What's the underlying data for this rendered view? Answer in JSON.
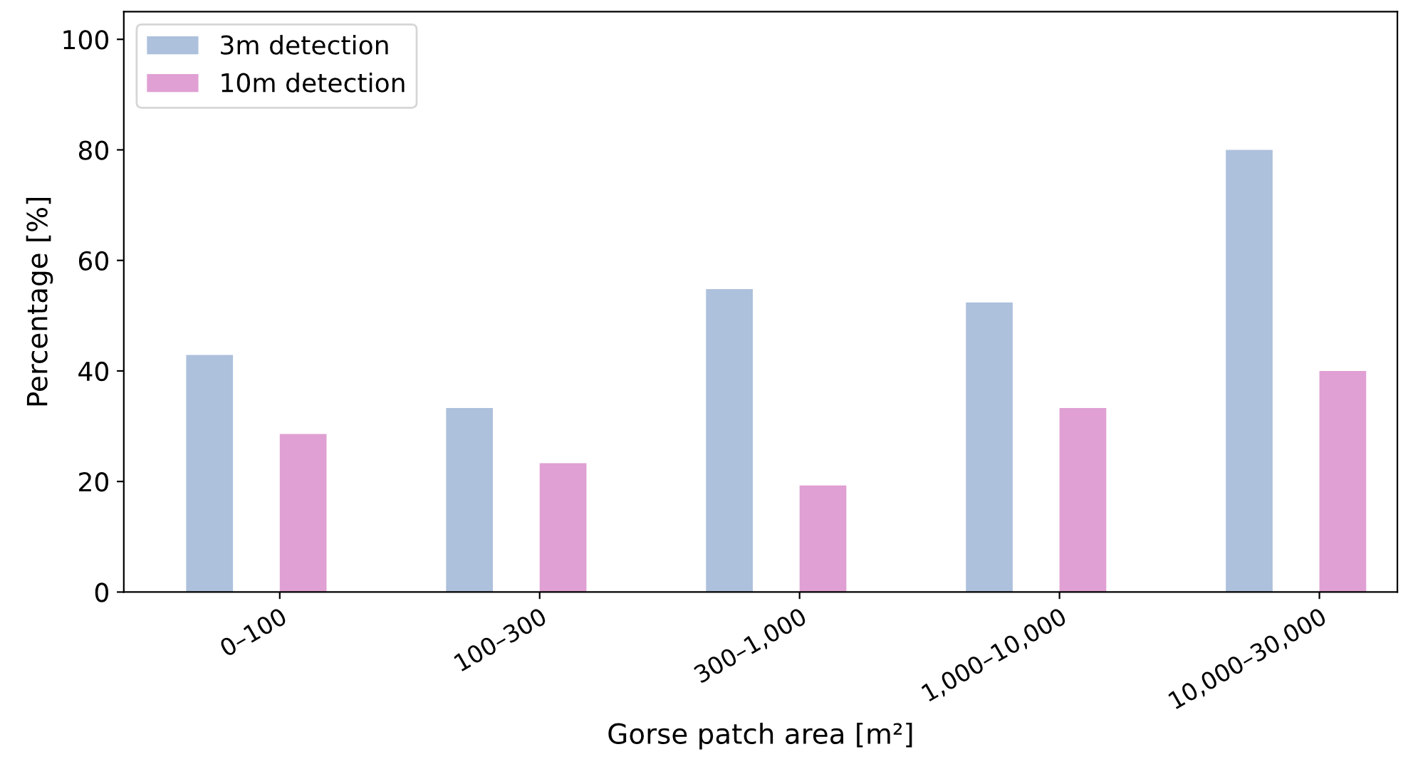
{
  "chart_data": {
    "type": "bar",
    "xlabel": "Gorse patch area [m²]",
    "ylabel": "Percentage [%]",
    "categories": [
      "0–100",
      "100–300",
      "300–1,000",
      "1,000–10,000",
      "10,000–30,000"
    ],
    "series": [
      {
        "name": "3m detection",
        "color": "#adc0dc",
        "values": [
          42.9,
          33.3,
          54.8,
          52.4,
          80.0
        ]
      },
      {
        "name": "10m detection",
        "color": "#e0a0d3",
        "values": [
          28.6,
          23.3,
          19.3,
          33.3,
          40.0
        ]
      }
    ],
    "ylim": [
      0,
      105
    ],
    "yticks": [
      0,
      20,
      40,
      60,
      80,
      100
    ],
    "grid": false,
    "legend": "top left"
  }
}
